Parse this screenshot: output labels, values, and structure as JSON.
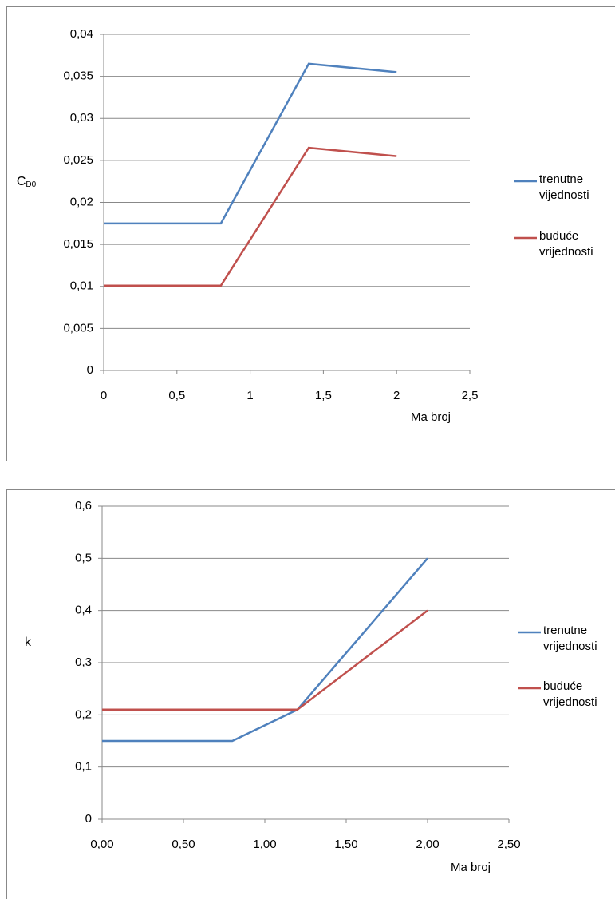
{
  "chart_data": [
    {
      "type": "line",
      "ylabel": "C",
      "ylabel_subscript": "D0",
      "xlabel": "Ma broj",
      "x": [
        0,
        0.8,
        1.4,
        2
      ],
      "series": [
        {
          "name": "trenutne vijednosti",
          "color": "#4f81bd",
          "values": [
            0.0175,
            0.0175,
            0.0365,
            0.0355
          ]
        },
        {
          "name": "buduće vrijednosti",
          "color": "#c0504d",
          "values": [
            0.0101,
            0.0101,
            0.0265,
            0.0255
          ]
        }
      ],
      "xlim": [
        0,
        2.5
      ],
      "xticks": [
        0,
        {
          "value": 0.5,
          "label": "0,5"
        },
        1,
        {
          "value": 1.5,
          "label": "1,5"
        },
        2,
        {
          "value": 2.5,
          "label": "2,5"
        }
      ],
      "ylim": [
        0,
        0.04
      ],
      "yticks": [
        0,
        {
          "value": 0.005,
          "label": "0,005"
        },
        {
          "value": 0.01,
          "label": "0,01"
        },
        {
          "value": 0.015,
          "label": "0,015"
        },
        {
          "value": 0.02,
          "label": "0,02"
        },
        {
          "value": 0.025,
          "label": "0,025"
        },
        {
          "value": 0.03,
          "label": "0,03"
        },
        {
          "value": 0.035,
          "label": "0,035"
        },
        {
          "value": 0.04,
          "label": "0,04"
        }
      ],
      "grid": true,
      "legend": "right"
    },
    {
      "type": "line",
      "ylabel": "k",
      "xlabel": "Ma broj",
      "x": [
        0,
        0.8,
        1.2,
        2
      ],
      "series": [
        {
          "name": "trenutne vrijednosti",
          "color": "#4f81bd",
          "values": [
            0.15,
            0.15,
            0.21,
            0.5
          ]
        },
        {
          "name": "buduće vrijednosti",
          "color": "#c0504d",
          "values": [
            0.21,
            0.21,
            0.21,
            0.4
          ]
        }
      ],
      "xlim": [
        0,
        2.5
      ],
      "xticks": [
        {
          "value": 0,
          "label": "0,00"
        },
        {
          "value": 0.5,
          "label": "0,50"
        },
        {
          "value": 1,
          "label": "1,00"
        },
        {
          "value": 1.5,
          "label": "1,50"
        },
        {
          "value": 2,
          "label": "2,00"
        },
        {
          "value": 2.5,
          "label": "2,50"
        }
      ],
      "ylim": [
        0,
        0.6
      ],
      "yticks": [
        0,
        {
          "value": 0.1,
          "label": "0,1"
        },
        {
          "value": 0.2,
          "label": "0,2"
        },
        {
          "value": 0.3,
          "label": "0,3"
        },
        {
          "value": 0.4,
          "label": "0,4"
        },
        {
          "value": 0.5,
          "label": "0,5"
        },
        {
          "value": 0.6,
          "label": "0,6"
        }
      ],
      "grid": true,
      "legend": "right"
    }
  ]
}
